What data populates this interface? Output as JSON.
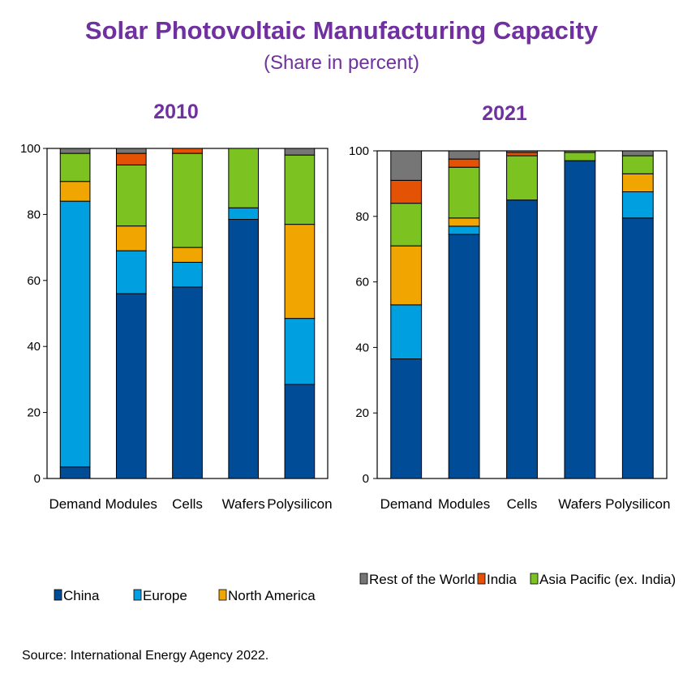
{
  "header": {
    "title": "Solar Photovoltaic Manufacturing Capacity",
    "subtitle": "(Share in percent)"
  },
  "footer": {
    "source": "Source: International Energy Agency 2022."
  },
  "colors": {
    "China": "#004c97",
    "Europe": "#009fdf",
    "North America": "#f0a500",
    "Asia Pacific (ex. India)": "#7cc221",
    "India": "#e35205",
    "Rest of the World": "#767676"
  },
  "legend_bottom": [
    "China",
    "Europe",
    "North America"
  ],
  "legend_top": [
    "Rest of the World",
    "India",
    "Asia Pacific (ex. India)"
  ],
  "chart_data": [
    {
      "type": "bar",
      "stacked": true,
      "title": "2010",
      "categories": [
        "Demand",
        "Modules",
        "Cells",
        "Wafers",
        "Polysilicon"
      ],
      "ylim": [
        0,
        100
      ],
      "yticks": [
        0,
        20,
        40,
        60,
        80,
        100
      ],
      "series": [
        {
          "name": "China",
          "values": [
            3.5,
            56,
            58,
            78.5,
            28.5
          ]
        },
        {
          "name": "Europe",
          "values": [
            80.5,
            13,
            7.5,
            3.5,
            20
          ]
        },
        {
          "name": "North America",
          "values": [
            6,
            7.5,
            4.5,
            0,
            28.5
          ]
        },
        {
          "name": "Asia Pacific (ex. India)",
          "values": [
            8.5,
            18.5,
            28.5,
            18,
            21
          ]
        },
        {
          "name": "India",
          "values": [
            0,
            3.5,
            1.5,
            0,
            0
          ]
        },
        {
          "name": "Rest of the World",
          "values": [
            1.5,
            1.5,
            0,
            0,
            2
          ]
        }
      ]
    },
    {
      "type": "bar",
      "stacked": true,
      "title": "2021",
      "categories": [
        "Demand",
        "Modules",
        "Cells",
        "Wafers",
        "Polysilicon"
      ],
      "ylim": [
        0,
        100
      ],
      "yticks": [
        0,
        20,
        40,
        60,
        80,
        100
      ],
      "series": [
        {
          "name": "China",
          "values": [
            36.5,
            74.5,
            85,
            97,
            79.5
          ]
        },
        {
          "name": "Europe",
          "values": [
            16.5,
            2.5,
            0,
            0,
            8
          ]
        },
        {
          "name": "North America",
          "values": [
            18,
            2.5,
            0,
            0,
            5.5
          ]
        },
        {
          "name": "Asia Pacific (ex. India)",
          "values": [
            13,
            15.5,
            13.5,
            2.5,
            5.5
          ]
        },
        {
          "name": "India",
          "values": [
            7,
            2.5,
            1,
            0,
            0
          ]
        },
        {
          "name": "Rest of the World",
          "values": [
            9,
            2.5,
            0.5,
            0.5,
            1.5
          ]
        }
      ]
    }
  ]
}
